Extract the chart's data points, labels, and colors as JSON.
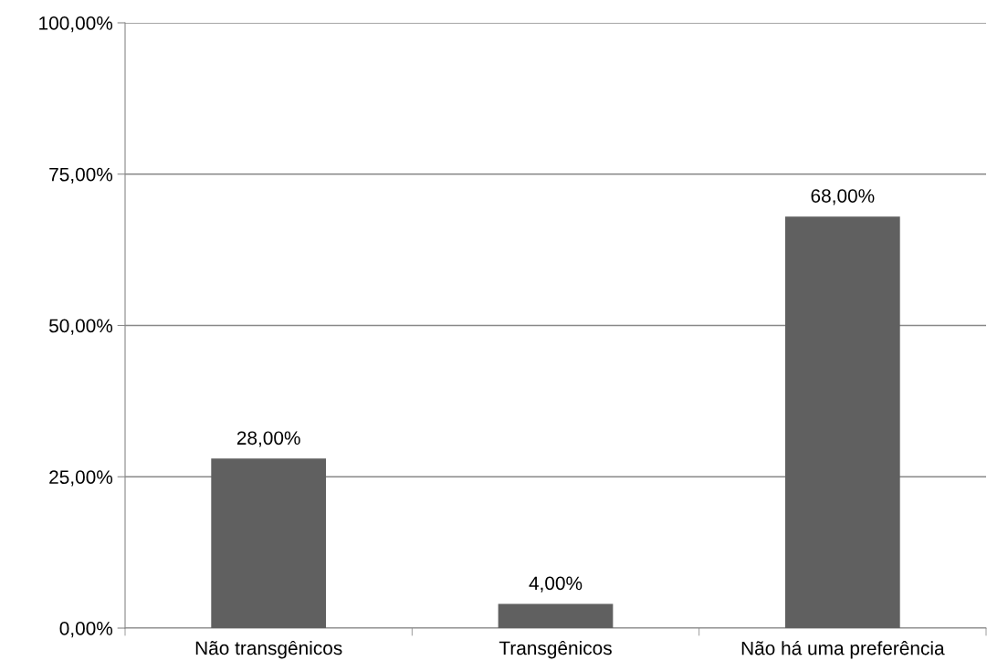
{
  "chart_data": {
    "type": "bar",
    "categories": [
      "Não transgênicos",
      "Transgênicos",
      "Não há uma preferência"
    ],
    "values": [
      28,
      4,
      68
    ],
    "color": "#606060",
    "value_labels": [
      "28,00%",
      "4,00%",
      "68,00%"
    ],
    "ylim": [
      0,
      100
    ],
    "yticks": [
      {
        "value": 0,
        "label": "0,00%"
      },
      {
        "value": 25,
        "label": "25,00%"
      },
      {
        "value": 50,
        "label": "50,00%"
      },
      {
        "value": 75,
        "label": "75,00%"
      },
      {
        "value": 100,
        "label": "100,00%"
      }
    ],
    "grid": "y",
    "legend": false
  }
}
